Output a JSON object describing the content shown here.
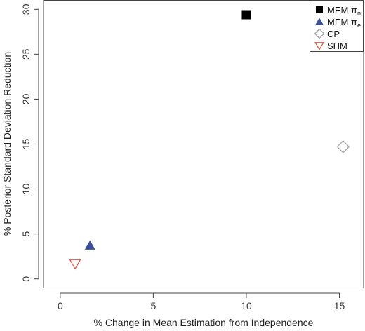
{
  "chart_data": {
    "type": "scatter",
    "title": "",
    "xlabel": "% Change in Mean Estimation from Independence",
    "ylabel": "% Posterior Standard Deviation Reduction",
    "xlim": [
      -0.9,
      16.3
    ],
    "ylim": [
      -1.0,
      31.0
    ],
    "xticks": [
      "0",
      "5",
      "10",
      "15"
    ],
    "yticks": [
      "0",
      "5",
      "10",
      "15",
      "20",
      "25",
      "30"
    ],
    "grid": false,
    "legend_position": "top-right",
    "series": [
      {
        "name": "MEM",
        "subscript": "n",
        "marker": "filled-square",
        "color": "#000000",
        "x": 10.0,
        "y": 29.4
      },
      {
        "name": "MEM",
        "subscript": "e",
        "marker": "filled-triangle-up",
        "color": "#3b4f9b",
        "x": 1.6,
        "y": 3.7
      },
      {
        "name": "CP",
        "subscript": "",
        "marker": "open-diamond",
        "color": "#9b9b9b",
        "x": 15.2,
        "y": 14.7
      },
      {
        "name": "SHM",
        "subscript": "",
        "marker": "open-triangle-down",
        "color": "#d9533f",
        "x": 0.8,
        "y": 1.7
      }
    ],
    "pi_symbol": "π"
  }
}
